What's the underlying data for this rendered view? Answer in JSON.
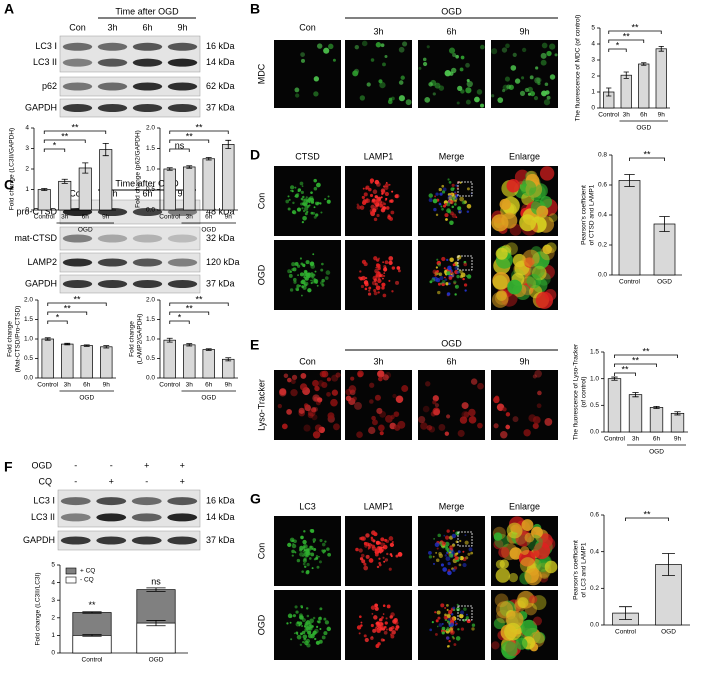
{
  "panels": {
    "A": {
      "letter": "A",
      "header": "Time after OGD",
      "lanes": [
        "Con",
        "3h",
        "6h",
        "9h"
      ],
      "blots": [
        {
          "labels": [
            "LC3 Ⅰ",
            "LC3 II"
          ],
          "kda": [
            "16 kDa",
            "14 kDa"
          ]
        },
        {
          "labels": [
            "p62"
          ],
          "kda": [
            "62 kDa"
          ]
        },
        {
          "labels": [
            "GAPDH"
          ],
          "kda": [
            "37 kDa"
          ]
        }
      ]
    },
    "B": {
      "letter": "B",
      "header": "OGD",
      "lanes": [
        "Con",
        "3h",
        "6h",
        "9h"
      ],
      "stain": "MDC"
    },
    "C": {
      "letter": "C",
      "header": "Time after OGD",
      "lanes": [
        "Con",
        "3h",
        "6h",
        "9h"
      ],
      "blots": [
        {
          "labels": [
            "pro-CTSD"
          ],
          "kda": [
            "48 kDa"
          ]
        },
        {
          "labels": [
            "mat-CTSD"
          ],
          "kda": [
            "32 kDa"
          ]
        },
        {
          "labels": [
            "LAMP2"
          ],
          "kda": [
            "120 kDa"
          ]
        },
        {
          "labels": [
            "GAPDH"
          ],
          "kda": [
            "37 kDa"
          ]
        }
      ]
    },
    "D": {
      "letter": "D",
      "columns": [
        "CTSD",
        "LAMP1",
        "Merge",
        "Enlarge"
      ],
      "rows": [
        "Con",
        "OGD"
      ]
    },
    "E": {
      "letter": "E",
      "header": "OGD",
      "lanes": [
        "Con",
        "3h",
        "6h",
        "9h"
      ],
      "stain": "Lyso-Tracker"
    },
    "F": {
      "letter": "F",
      "conditions": [
        {
          "name": "OGD",
          "signs": [
            "-",
            "-",
            "+",
            "+"
          ]
        },
        {
          "name": "CQ",
          "signs": [
            "-",
            "+",
            "-",
            "+"
          ]
        }
      ],
      "blots": [
        {
          "labels": [
            "LC3 Ⅰ",
            "LC3 II"
          ],
          "kda": [
            "16 kDa",
            "14 kDa"
          ]
        },
        {
          "labels": [
            "GAPDH"
          ],
          "kda": [
            "37 kDa"
          ]
        }
      ]
    },
    "G": {
      "letter": "G",
      "columns": [
        "LC3",
        "LAMP1",
        "Merge",
        "Enlarge"
      ],
      "rows": [
        "Con",
        "OGD"
      ]
    }
  },
  "chart_data": [
    {
      "type": "bar",
      "ylabel": "Fold change (LC3II/GAPDH)",
      "categories": [
        "Control",
        "3h",
        "6h",
        "9h"
      ],
      "values": [
        1.0,
        1.4,
        2.05,
        2.95
      ],
      "errors": [
        0.05,
        0.1,
        0.25,
        0.3
      ],
      "color": "#d9d9d9",
      "ylim": [
        0,
        4
      ],
      "yticks": [
        0,
        1,
        2,
        3,
        4
      ],
      "group": {
        "label": "OGD",
        "from": "3h",
        "to": "9h"
      },
      "comparisons": [
        {
          "text": "*",
          "between": [
            "Control",
            "3h"
          ]
        },
        {
          "text": "**",
          "between": [
            "Control",
            "6h"
          ]
        },
        {
          "text": "**",
          "between": [
            "Control",
            "9h"
          ]
        }
      ]
    },
    {
      "type": "bar",
      "ylabel": "Fold change (p62/GAPDH)",
      "categories": [
        "Control",
        "3h",
        "6h",
        "9h"
      ],
      "values": [
        1.0,
        1.05,
        1.25,
        1.6
      ],
      "errors": [
        0.03,
        0.03,
        0.03,
        0.1
      ],
      "color": "#d9d9d9",
      "ylim": [
        0,
        2
      ],
      "yticks": [
        {
          "value": 0,
          "label": "0.0"
        },
        0.5,
        {
          "value": 1,
          "label": "1.0"
        },
        1.5,
        {
          "value": 2,
          "label": "2.0"
        }
      ],
      "group": {
        "label": "OGD",
        "from": "3h",
        "to": "9h"
      },
      "comparisons": [
        {
          "text": "ns",
          "between": [
            "Control",
            "3h"
          ]
        },
        {
          "text": "**",
          "between": [
            "Control",
            "6h"
          ]
        },
        {
          "text": "**",
          "between": [
            "Control",
            "9h"
          ]
        }
      ]
    },
    {
      "type": "bar",
      "ylabel": "The fluorescence of MDC (of control)",
      "categories": [
        "Control",
        "3h",
        "6h",
        "9h"
      ],
      "values": [
        1.0,
        2.05,
        2.75,
        3.7
      ],
      "errors": [
        0.25,
        0.2,
        0.08,
        0.15
      ],
      "color": "#d9d9d9",
      "ylim": [
        0,
        5
      ],
      "yticks": [
        0,
        1,
        2,
        3,
        4,
        5
      ],
      "group": {
        "label": "OGD",
        "from": "3h",
        "to": "9h"
      },
      "comparisons": [
        {
          "text": "*",
          "between": [
            "Control",
            "3h"
          ]
        },
        {
          "text": "**",
          "between": [
            "Control",
            "6h"
          ]
        },
        {
          "text": "**",
          "between": [
            "Control",
            "9h"
          ]
        }
      ]
    },
    {
      "type": "bar",
      "ylabel": [
        "Fold change",
        "(Mat-CTSD/Pro-CTSD)"
      ],
      "categories": [
        "Control",
        "3h",
        "6h",
        "9h"
      ],
      "values": [
        1.0,
        0.87,
        0.83,
        0.8
      ],
      "errors": [
        0.03,
        0.02,
        0.02,
        0.03
      ],
      "color": "#d9d9d9",
      "ylim": [
        0,
        2
      ],
      "yticks": [
        {
          "value": 0,
          "label": "0.0"
        },
        0.5,
        {
          "value": 1,
          "label": "1.0"
        },
        1.5,
        {
          "value": 2,
          "label": "2.0"
        }
      ],
      "group": {
        "label": "OGD",
        "from": "3h",
        "to": "9h"
      },
      "comparisons": [
        {
          "text": "*",
          "between": [
            "Control",
            "3h"
          ]
        },
        {
          "text": "**",
          "between": [
            "Control",
            "6h"
          ]
        },
        {
          "text": "**",
          "between": [
            "Control",
            "9h"
          ]
        }
      ]
    },
    {
      "type": "bar",
      "ylabel": [
        "Fold change",
        "(LAMP2/GAPDH)"
      ],
      "categories": [
        "Control",
        "3h",
        "6h",
        "9h"
      ],
      "values": [
        0.97,
        0.85,
        0.73,
        0.48
      ],
      "errors": [
        0.05,
        0.03,
        0.02,
        0.04
      ],
      "color": "#d9d9d9",
      "ylim": [
        0,
        2
      ],
      "yticks": [
        {
          "value": 0,
          "label": "0.0"
        },
        0.5,
        {
          "value": 1,
          "label": "1.0"
        },
        1.5,
        {
          "value": 2,
          "label": "2.0"
        }
      ],
      "group": {
        "label": "OGD",
        "from": "3h",
        "to": "9h"
      },
      "comparisons": [
        {
          "text": "*",
          "between": [
            "Control",
            "3h"
          ]
        },
        {
          "text": "**",
          "between": [
            "Control",
            "6h"
          ]
        },
        {
          "text": "**",
          "between": [
            "Control",
            "9h"
          ]
        }
      ]
    },
    {
      "type": "bar",
      "ylabel": [
        "Pearson's coefficient",
        "of CTSD and LAMP1"
      ],
      "categories": [
        "Control",
        "OGD"
      ],
      "values": [
        0.63,
        0.34
      ],
      "errors": [
        0.04,
        0.05
      ],
      "color": "#d9d9d9",
      "ylim": [
        0,
        0.8
      ],
      "yticks": [
        {
          "value": 0,
          "label": "0.0"
        },
        0.2,
        0.4,
        0.6,
        0.8
      ],
      "comparisons": [
        {
          "text": "**",
          "between": [
            "Control",
            "OGD"
          ]
        }
      ]
    },
    {
      "type": "bar",
      "ylabel": [
        "The fluorescence of Lyso-Tracker",
        "(of control)"
      ],
      "categories": [
        "Control",
        "3h",
        "6h",
        "9h"
      ],
      "values": [
        1.0,
        0.7,
        0.46,
        0.35
      ],
      "errors": [
        0.03,
        0.04,
        0.02,
        0.03
      ],
      "color": "#d9d9d9",
      "ylim": [
        0,
        1.5
      ],
      "yticks": [
        {
          "value": 0,
          "label": "0.0"
        },
        0.5,
        {
          "value": 1,
          "label": "1.0"
        },
        1.5
      ],
      "group": {
        "label": "OGD",
        "from": "3h",
        "to": "9h"
      },
      "comparisons": [
        {
          "text": "**",
          "between": [
            "Control",
            "3h"
          ]
        },
        {
          "text": "**",
          "between": [
            "Control",
            "6h"
          ]
        },
        {
          "text": "**",
          "between": [
            "Control",
            "9h"
          ]
        }
      ]
    },
    {
      "type": "overlay-bar",
      "ylabel": "Fold change (LC3II/LC3I)",
      "categories": [
        "Control",
        "OGD"
      ],
      "series": [
        {
          "name": "+ CQ",
          "color": "#808080",
          "values": [
            2.3,
            3.6
          ],
          "errors": [
            0.04,
            0.1
          ]
        },
        {
          "name": "- CQ",
          "color": "#ffffff",
          "values": [
            1.0,
            1.7
          ],
          "errors": [
            0.05,
            0.15
          ]
        }
      ],
      "bar_labels": [
        "**",
        "ns"
      ],
      "legend": "top-left",
      "ylim": [
        0,
        5
      ],
      "yticks": [
        0,
        1,
        2,
        3,
        4,
        5
      ]
    },
    {
      "type": "bar",
      "ylabel": [
        "Pearson's coefficient",
        "of LC3 and LAMP1"
      ],
      "categories": [
        "Control",
        "OGD"
      ],
      "values": [
        0.065,
        0.33
      ],
      "errors": [
        0.035,
        0.06
      ],
      "color": "#d9d9d9",
      "ylim": [
        0,
        0.6
      ],
      "yticks": [
        {
          "value": 0,
          "label": "0.0"
        },
        0.2,
        0.4,
        0.6
      ],
      "comparisons": [
        {
          "text": "**",
          "between": [
            "Control",
            "OGD"
          ]
        }
      ]
    }
  ]
}
